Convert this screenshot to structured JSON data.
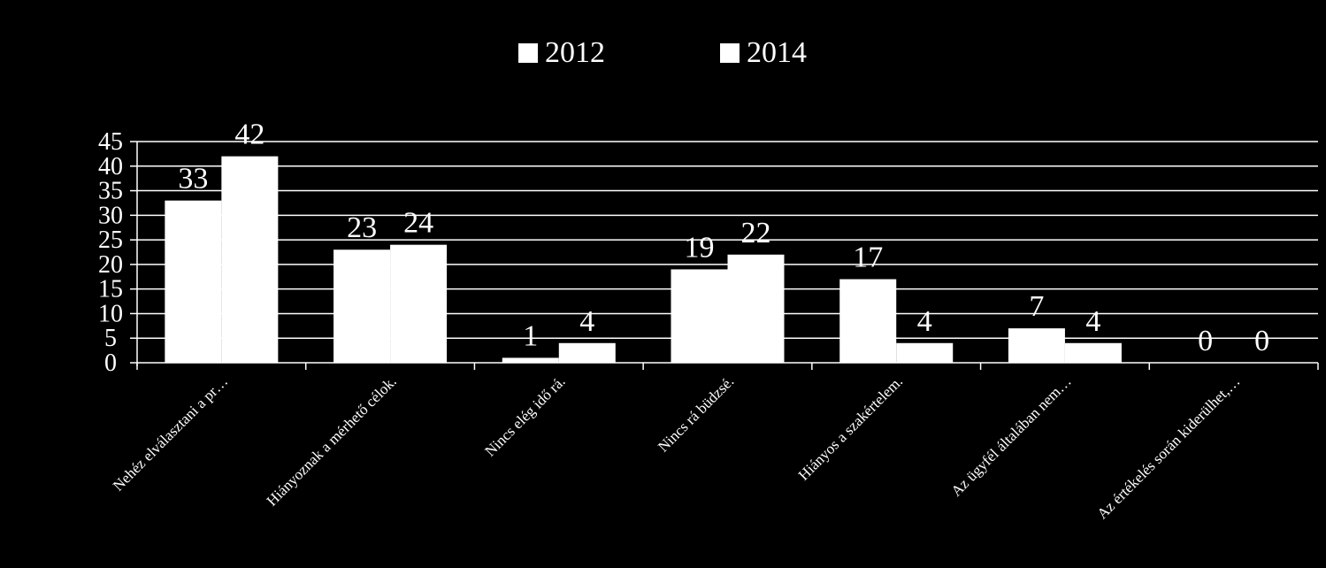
{
  "chart_data": {
    "type": "bar",
    "categories": [
      "Nehéz elválasztani a pr…",
      "Hiányoznak a mérhető célok.",
      "Nincs elég idő rá.",
      "Nincs rá büdzsé.",
      "Hiányos a szakértelem.",
      "Az ügyfél általában nem…",
      "Az értékelés során kiderülhet,…"
    ],
    "series": [
      {
        "name": "2012",
        "values": [
          33,
          23,
          1,
          19,
          17,
          7,
          0
        ]
      },
      {
        "name": "2014",
        "values": [
          42,
          24,
          4,
          22,
          4,
          4,
          0
        ]
      }
    ],
    "yticks": [
      "0",
      "5",
      "10",
      "15",
      "20",
      "25",
      "30",
      "35",
      "40",
      "45"
    ],
    "ylim": [
      0,
      45
    ],
    "grid": true,
    "legend_position": "top",
    "colors": {
      "background": "#000000",
      "bar": "#ffffff",
      "text": "#ffffff",
      "grid": "#ffffff"
    }
  }
}
